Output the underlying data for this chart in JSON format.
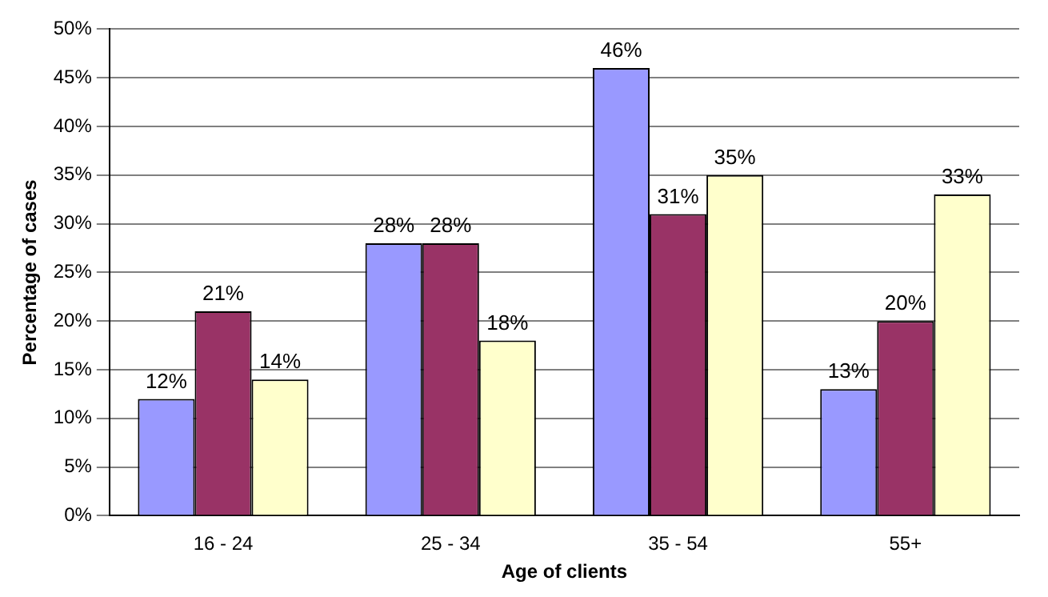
{
  "chart_data": {
    "type": "bar",
    "xlabel": "Age of clients",
    "ylabel": "Percentage of cases",
    "categories": [
      "16 - 24",
      "25 - 34",
      "35 - 54",
      "55+"
    ],
    "series": [
      {
        "color": "#9999ff",
        "values": [
          12,
          28,
          46,
          13
        ],
        "value_labels": [
          "12%",
          "28%",
          "46%",
          "13%"
        ]
      },
      {
        "color": "#993366",
        "values": [
          21,
          28,
          31,
          20
        ],
        "value_labels": [
          "21%",
          "28%",
          "31%",
          "20%"
        ]
      },
      {
        "color": "#ffffcc",
        "values": [
          14,
          18,
          35,
          33
        ],
        "value_labels": [
          "14%",
          "18%",
          "35%",
          "33%"
        ]
      }
    ],
    "ylim": [
      0,
      50
    ],
    "yticks": [
      {
        "value": 0,
        "label": "0%"
      },
      {
        "value": 5,
        "label": "5%"
      },
      {
        "value": 10,
        "label": "10%"
      },
      {
        "value": 15,
        "label": "15%"
      },
      {
        "value": 20,
        "label": "20%"
      },
      {
        "value": 25,
        "label": "25%"
      },
      {
        "value": 30,
        "label": "30%"
      },
      {
        "value": 35,
        "label": "35%"
      },
      {
        "value": 40,
        "label": "40%"
      },
      {
        "value": 45,
        "label": "45%"
      },
      {
        "value": 50,
        "label": "50%"
      }
    ],
    "grid": "y",
    "legend": false
  }
}
